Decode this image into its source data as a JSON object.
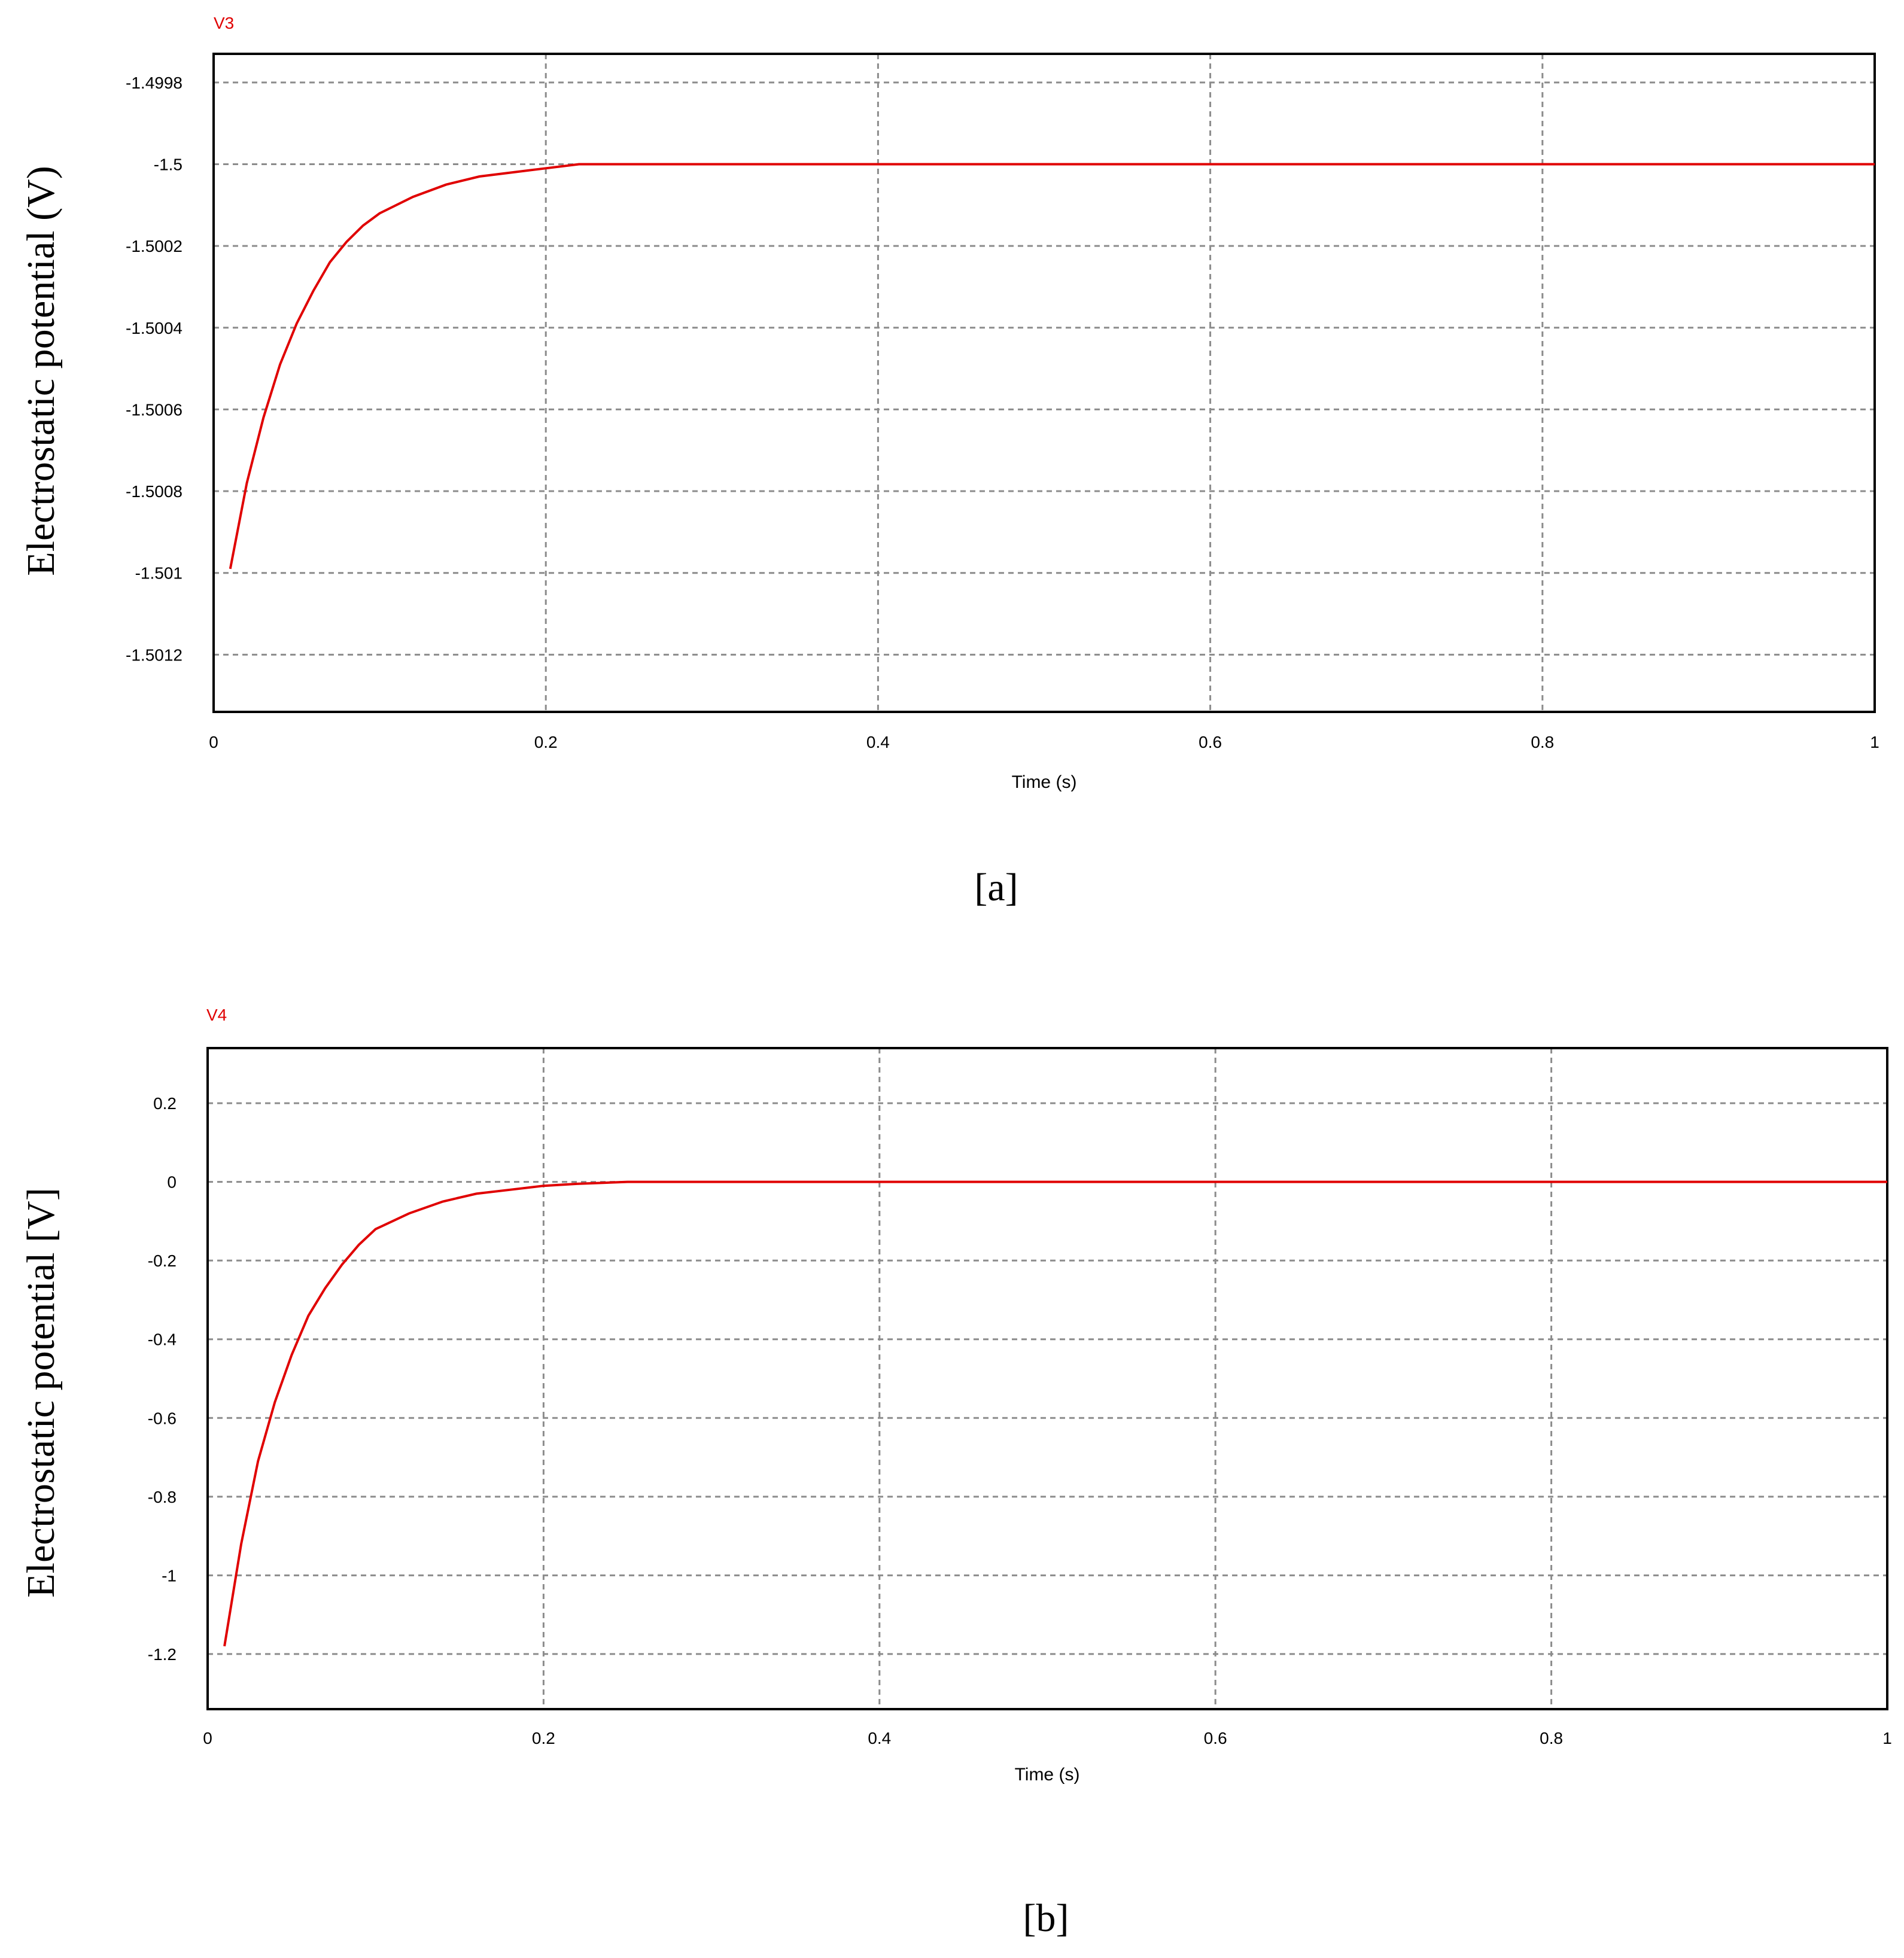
{
  "chart_data": [
    {
      "type": "line",
      "series_tag": "V3",
      "ylabel": "Electrostatic potential (V)",
      "xlabel": "Time (s)",
      "caption": "[a]",
      "xlim": [
        0,
        1
      ],
      "ylim": [
        -1.50134,
        -1.49973
      ],
      "x_ticks": [
        0,
        0.2,
        0.4,
        0.6,
        0.8,
        1
      ],
      "x_tick_labels": [
        "0",
        "0.2",
        "0.4",
        "0.6",
        "0.8",
        "1"
      ],
      "y_ticks": [
        -1.4998,
        -1.5,
        -1.5002,
        -1.5004,
        -1.5006,
        -1.5008,
        -1.501,
        -1.5012
      ],
      "y_tick_labels": [
        "-1.4998",
        "-1.5",
        "-1.5002",
        "-1.5004",
        "-1.5006",
        "-1.5008",
        "-1.501",
        "-1.5012"
      ],
      "grid": true,
      "series": [
        {
          "color": "#e00000",
          "x": [
            0.01,
            0.02,
            0.03,
            0.04,
            0.05,
            0.06,
            0.07,
            0.08,
            0.09,
            0.1,
            0.12,
            0.14,
            0.16,
            0.18,
            0.2,
            0.22,
            0.3,
            0.4,
            0.5,
            0.6,
            0.7,
            0.8,
            0.9,
            1.0
          ],
          "y": [
            -1.50099,
            -1.50078,
            -1.50062,
            -1.50049,
            -1.50039,
            -1.50031,
            -1.50024,
            -1.50019,
            -1.50015,
            -1.50012,
            -1.50008,
            -1.50005,
            -1.50003,
            -1.50002,
            -1.50001,
            -1.5,
            -1.5,
            -1.5,
            -1.5,
            -1.5,
            -1.5,
            -1.5,
            -1.5,
            -1.5
          ]
        }
      ]
    },
    {
      "type": "line",
      "series_tag": "V4",
      "ylabel": "Electrostatic potential [V]",
      "xlabel": "Time (s)",
      "caption": "[b]",
      "xlim": [
        0,
        1
      ],
      "ylim": [
        -1.34,
        0.34
      ],
      "x_ticks": [
        0,
        0.2,
        0.4,
        0.6,
        0.8,
        1
      ],
      "x_tick_labels": [
        "0",
        "0.2",
        "0.4",
        "0.6",
        "0.8",
        "1"
      ],
      "y_ticks": [
        0.2,
        0,
        -0.2,
        -0.4,
        -0.6,
        -0.8,
        -1,
        -1.2
      ],
      "y_tick_labels": [
        "0.2",
        "0",
        "-0.2",
        "-0.4",
        "-0.6",
        "-0.8",
        "-1",
        "-1.2"
      ],
      "grid": true,
      "series": [
        {
          "color": "#e00000",
          "x": [
            0.01,
            0.02,
            0.03,
            0.04,
            0.05,
            0.06,
            0.07,
            0.08,
            0.09,
            0.1,
            0.12,
            0.14,
            0.16,
            0.18,
            0.2,
            0.22,
            0.25,
            0.3,
            0.4,
            0.5,
            0.6,
            0.7,
            0.8,
            0.9,
            1.0
          ],
          "y": [
            -1.18,
            -0.92,
            -0.71,
            -0.56,
            -0.44,
            -0.34,
            -0.27,
            -0.21,
            -0.16,
            -0.12,
            -0.08,
            -0.05,
            -0.03,
            -0.02,
            -0.01,
            -0.005,
            0,
            0,
            0,
            0,
            0,
            0,
            0,
            0,
            0
          ]
        }
      ]
    }
  ]
}
